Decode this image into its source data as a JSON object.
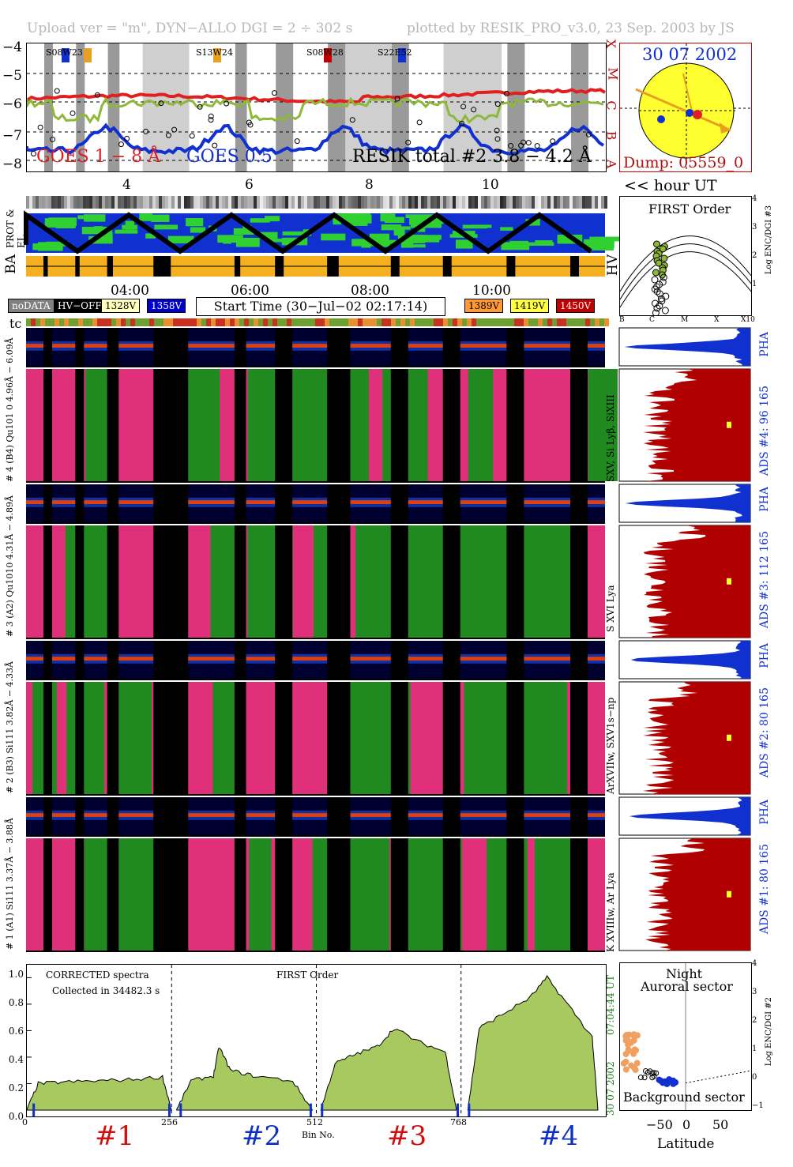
{
  "header": {
    "left": "Upload ver = \"m\", DYN−ALLO DGI =   2 ÷ 302 s",
    "right": "plotted by RESIK_PRO_v3.0, 23 Sep. 2003 by JS"
  },
  "goes_panel": {
    "y_ticks": [
      "−4",
      "−5",
      "−6",
      "−7",
      "−8"
    ],
    "class_letters": [
      "X",
      "M",
      "C",
      "B",
      "A"
    ],
    "x_ticks": [
      "4",
      "6",
      "8",
      "10"
    ],
    "hour_label": "<< hour UT",
    "region_labels": [
      "S08W23",
      "S13W24",
      "S08W28",
      "S22E52"
    ],
    "label_goes_long": "GOES 1 − 8 Å",
    "label_goes_short": "GOES 0.5",
    "label_resik": "RESIK total #2  3.8 − 4.2 Å",
    "series": [
      {
        "name": "GOES 1 − 8 Å",
        "color": "#e02020"
      },
      {
        "name": "GOES 0.5",
        "color": "#1030d0"
      },
      {
        "name": "RESIK total #2",
        "color": "#8db83a"
      }
    ]
  },
  "sun_panel": {
    "date": "30 07 2002",
    "dump": "Dump: 05559_0"
  },
  "band_panel": {
    "labels": [
      "PROT & EL",
      "BA",
      "HV"
    ]
  },
  "first_order_panel": {
    "title": "FIRST Order",
    "y_label": "Log ENC/DGI #3",
    "y_ticks": [
      "4",
      "3",
      "2",
      "1"
    ],
    "x_ticks": [
      "B",
      "C",
      "M",
      "X",
      "X10"
    ]
  },
  "time_axis": {
    "ticks": [
      "04:00",
      "06:00",
      "08:00",
      "10:00"
    ]
  },
  "legend": {
    "items": [
      {
        "label": "noDATA",
        "bg": "#808080",
        "fg": "#ffffff"
      },
      {
        "label": "HV−OFF",
        "bg": "#000000",
        "fg": "#ffffff"
      },
      {
        "label": "1328V",
        "bg": "#ffffc0",
        "fg": "#000000"
      },
      {
        "label": "1358V",
        "bg": "#0000c8",
        "fg": "#ffffff"
      },
      {
        "label": "1389V",
        "bg": "#ff9933",
        "fg": "#000000"
      },
      {
        "label": "1419V",
        "bg": "#ffff40",
        "fg": "#000000"
      },
      {
        "label": "1450V",
        "bg": "#c00000",
        "fg": "#ffffff"
      }
    ],
    "start_time": "Start Time (30−Jul−02 02:17:14)",
    "tc": "tc"
  },
  "channels": [
    {
      "left": "# 4 (B4) Qu101 0 4.96Å − 6.09Å",
      "right": "SXV, Si Lyβ, SiXIII",
      "ads": "ADS #4:   96 165",
      "pha": "PHA"
    },
    {
      "left": "# 3 (A2) Qu1010  4.31Å − 4.89Å",
      "right": "S XVI Lya",
      "ads": "ADS #3:   112 165",
      "pha": "PHA"
    },
    {
      "left": "# 2 (B3) Si111  3.82Å − 4.33Å",
      "right": "ArXVIIw, SXV1s−np",
      "ads": "ADS #2:   80 165",
      "pha": "PHA"
    },
    {
      "left": "# 1 (A1) Si111  3.37Å − 3.88Å",
      "right": "K XVIIIw, Ar Lya",
      "ads": "ADS #1:   80 165",
      "pha": "PHA"
    }
  ],
  "spectra_panel": {
    "title": "CORRECTED spectra",
    "collected": "Collected in 34482.3 s",
    "order": "FIRST Order",
    "x_label": "Bin No.",
    "x_ticks": [
      "0",
      "256",
      "512",
      "768"
    ],
    "y_ticks": [
      "0.0",
      "0.2",
      "0.4",
      "0.6",
      "0.8",
      "1.0"
    ],
    "date_vertical": "30 07 2002",
    "time_vertical": "07:04:44 UT",
    "channel_labels": [
      {
        "label": "#1",
        "color": "#d01010"
      },
      {
        "label": "#2",
        "color": "#1030c0"
      },
      {
        "label": "#3",
        "color": "#d01010"
      },
      {
        "label": "#4",
        "color": "#1030c0"
      }
    ]
  },
  "latitude_panel": {
    "title1": "Night",
    "title2": "Auroral sector",
    "bottom": "Background sector",
    "x_label": "Latitude",
    "x_ticks": [
      "−50",
      "0",
      "50"
    ],
    "y_label": "Log ENC/DGI #2",
    "y_ticks": [
      "4",
      "3",
      "2",
      "1",
      "0",
      "−1"
    ]
  },
  "chart_data": {
    "type": "area",
    "x_label": "Bin No.",
    "xlim": [
      0,
      1024
    ],
    "ylim": [
      0,
      1.05
    ],
    "segments": [
      {
        "label": "#1",
        "x": [
          0,
          20,
          60,
          120,
          180,
          240,
          256
        ],
        "y": [
          0.0,
          0.2,
          0.21,
          0.22,
          0.23,
          0.25,
          0.0
        ]
      },
      {
        "label": "#2",
        "x": [
          265,
          290,
          330,
          340,
          360,
          400,
          470,
          505
        ],
        "y": [
          0.0,
          0.22,
          0.26,
          0.48,
          0.3,
          0.26,
          0.22,
          0.0
        ]
      },
      {
        "label": "#3",
        "x": [
          520,
          545,
          580,
          620,
          650,
          690,
          740,
          760
        ],
        "y": [
          0.0,
          0.35,
          0.42,
          0.48,
          0.62,
          0.52,
          0.44,
          0.0
        ]
      },
      {
        "label": "#4",
        "x": [
          780,
          800,
          840,
          890,
          920,
          960,
          1000,
          1010
        ],
        "y": [
          0.0,
          0.62,
          0.72,
          0.85,
          1.0,
          0.78,
          0.55,
          0.0
        ]
      }
    ]
  }
}
